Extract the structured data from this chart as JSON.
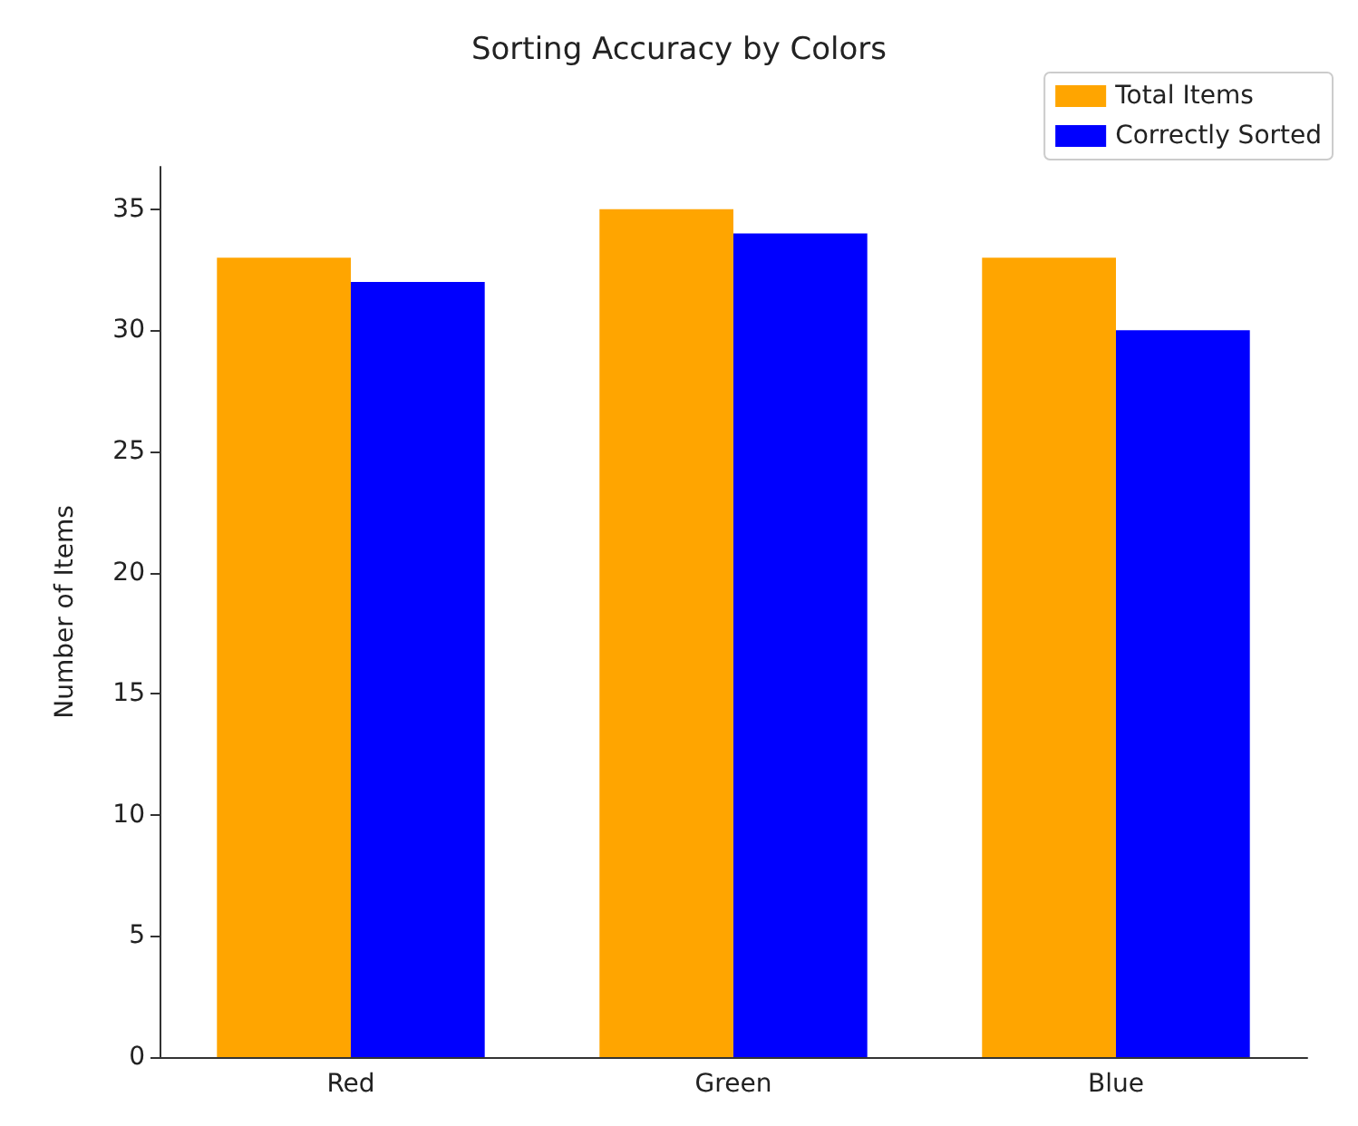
{
  "chart_data": {
    "type": "bar",
    "title": "Sorting Accuracy by Colors",
    "ylabel": "Number of Items",
    "categories": [
      "Red",
      "Green",
      "Blue"
    ],
    "series": [
      {
        "name": "Total Items",
        "color": "#ffa500",
        "values": [
          33,
          35,
          33
        ]
      },
      {
        "name": "Correctly Sorted",
        "color": "#0000ff",
        "values": [
          32,
          34,
          30
        ]
      }
    ],
    "ylim": [
      0,
      36.75
    ],
    "yticks": [
      0,
      5,
      10,
      15,
      20,
      25,
      30,
      35
    ],
    "legend": "top right",
    "grid": false
  }
}
